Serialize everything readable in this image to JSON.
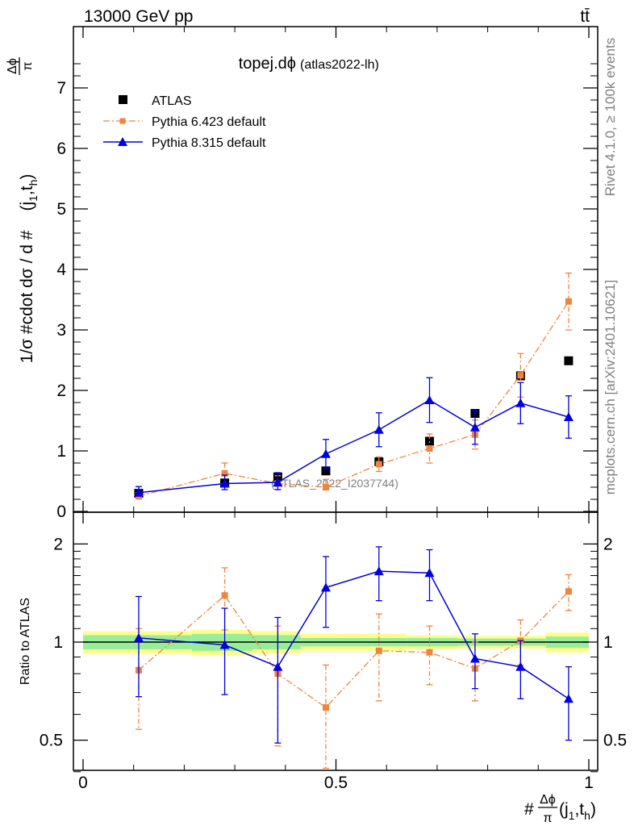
{
  "header": {
    "energy": "13000 GeV pp",
    "process": "tt̄"
  },
  "side": {
    "rivet": "Rivet 4.1.0, ≥ 100k events",
    "mcplots": "mcplots.cern.ch [arXiv:2401.10621]"
  },
  "colors": {
    "atlas": "#000000",
    "p6": "#f0843c",
    "p8": "#0000e0",
    "band_inner": "#98ee98",
    "band_outer": "#fdfd8c"
  },
  "chart_data": [
    {
      "type": "scatter",
      "title_main": "topej.dϕ",
      "title_sub": "(atlas2022-lh)",
      "watermark": "(ATLAS_2022_I2037744)",
      "ylabel": "1/σ #cdot dσ / d #Δϕ/π(j1,th)",
      "ylabel_parts": {
        "a": "1/σ #cdot dσ / d #",
        "num": "Δϕ",
        "den": "π",
        "b": "(j",
        "s1": "1",
        "c": ",t",
        "s2": "h",
        "d": ")"
      },
      "ylim": [
        0,
        7.6
      ],
      "yticks": [
        0,
        1,
        2,
        3,
        4,
        5,
        6,
        7
      ],
      "ytick_labels": [
        "0",
        "1",
        "2",
        "3",
        "4",
        "5",
        "6",
        "7"
      ],
      "xlim": [
        0,
        1
      ],
      "legend": [
        "ATLAS",
        "Pythia 6.423 default",
        "Pythia 8.315 default"
      ],
      "legend_position": "top-left",
      "series": [
        {
          "name": "ATLAS",
          "x": [
            0.11,
            0.28,
            0.385,
            0.48,
            0.585,
            0.685,
            0.775,
            0.865,
            0.96
          ],
          "y": [
            0.3,
            0.47,
            0.57,
            0.67,
            0.82,
            1.16,
            1.62,
            2.24,
            2.49
          ]
        },
        {
          "name": "Pythia 6.423 default",
          "x": [
            0.11,
            0.28,
            0.385,
            0.48,
            0.585,
            0.685,
            0.775,
            0.865,
            0.96
          ],
          "y": [
            0.25,
            0.63,
            0.46,
            0.4,
            0.78,
            1.04,
            1.27,
            2.25,
            3.47
          ],
          "err": [
            0.06,
            0.17,
            0.13,
            0.13,
            0.12,
            0.24,
            0.24,
            0.36,
            0.47
          ]
        },
        {
          "name": "Pythia 8.315 default",
          "x": [
            0.11,
            0.28,
            0.385,
            0.48,
            0.585,
            0.685,
            0.775,
            0.865,
            0.96
          ],
          "y": [
            0.31,
            0.46,
            0.48,
            0.95,
            1.35,
            1.84,
            1.39,
            1.79,
            1.56
          ],
          "err": [
            0.1,
            0.14,
            0.16,
            0.24,
            0.28,
            0.37,
            0.28,
            0.34,
            0.35
          ]
        }
      ]
    },
    {
      "type": "scatter",
      "ylabel": "Ratio to ATLAS",
      "xlabel": "#Δϕ/π(j1,th)",
      "xlabel_parts": {
        "a": "#",
        "num": "Δϕ",
        "den": "π",
        "b": "(j",
        "s1": "1",
        "c": ",t",
        "s2": "h",
        "d": ")"
      },
      "ylim": [
        0.35,
        2.25
      ],
      "yticks": [
        0.5,
        1,
        2
      ],
      "ytick_labels": [
        "0.5",
        "1",
        "2"
      ],
      "xlim": [
        0,
        1
      ],
      "xticks": [
        0,
        0.5,
        1
      ],
      "xtick_labels": [
        "0",
        "0.5",
        "1"
      ],
      "bands": [
        {
          "x0": 0.0,
          "x1": 0.215,
          "inner": 0.05,
          "outer": 0.08
        },
        {
          "x0": 0.215,
          "x1": 0.335,
          "inner": 0.06,
          "outer": 0.09
        },
        {
          "x0": 0.335,
          "x1": 0.43,
          "inner": 0.05,
          "outer": 0.08
        },
        {
          "x0": 0.43,
          "x1": 0.64,
          "inner": 0.03,
          "outer": 0.06
        },
        {
          "x0": 0.64,
          "x1": 0.74,
          "inner": 0.03,
          "outer": 0.05
        },
        {
          "x0": 0.74,
          "x1": 0.915,
          "inner": 0.025,
          "outer": 0.045
        },
        {
          "x0": 0.915,
          "x1": 1.0,
          "inner": 0.04,
          "outer": 0.07
        }
      ],
      "series": [
        {
          "name": "Pythia 6.423 default",
          "x": [
            0.11,
            0.28,
            0.385,
            0.48,
            0.585,
            0.685,
            0.775,
            0.865,
            0.96
          ],
          "y": [
            0.82,
            1.39,
            0.8,
            0.63,
            0.94,
            0.93,
            0.83,
            1.01,
            1.43
          ],
          "err": [
            0.28,
            0.3,
            0.32,
            0.22,
            0.28,
            0.19,
            0.17,
            0.16,
            0.18
          ]
        },
        {
          "name": "Pythia 8.315 default",
          "x": [
            0.11,
            0.28,
            0.385,
            0.48,
            0.585,
            0.685,
            0.775,
            0.865,
            0.96
          ],
          "y": [
            1.03,
            0.98,
            0.84,
            1.47,
            1.65,
            1.63,
            0.89,
            0.84,
            0.67
          ],
          "err": [
            0.35,
            0.29,
            0.35,
            0.36,
            0.31,
            0.29,
            0.17,
            0.17,
            0.17
          ]
        }
      ]
    }
  ]
}
